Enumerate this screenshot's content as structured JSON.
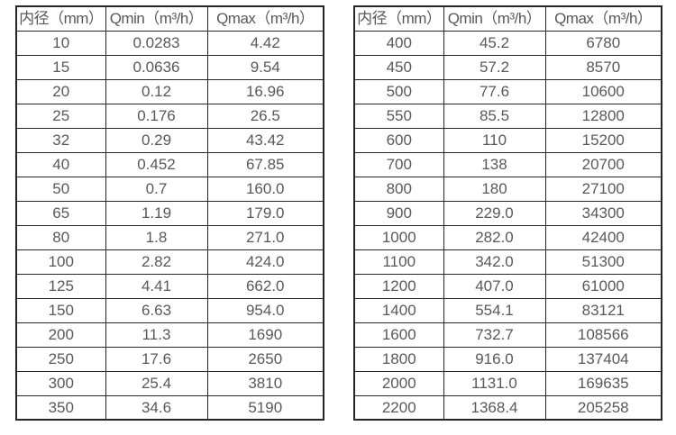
{
  "colors": {
    "background": "#ffffff",
    "border": "#262626",
    "text": "#595959"
  },
  "left_table": {
    "headers": {
      "diameter": "内径（mm）",
      "qmin": "Qmin（m³/h）",
      "qmax": "Qmax（m³/h）"
    },
    "rows": [
      [
        "10",
        "0.0283",
        "4.42"
      ],
      [
        "15",
        "0.0636",
        "9.54"
      ],
      [
        "20",
        "0.12",
        "16.96"
      ],
      [
        "25",
        "0.176",
        "26.5"
      ],
      [
        "32",
        "0.29",
        "43.42"
      ],
      [
        "40",
        "0.452",
        "67.85"
      ],
      [
        "50",
        "0.7",
        "160.0"
      ],
      [
        "65",
        "1.19",
        "179.0"
      ],
      [
        "80",
        "1.8",
        "271.0"
      ],
      [
        "100",
        "2.82",
        "424.0"
      ],
      [
        "125",
        "4.41",
        "662.0"
      ],
      [
        "150",
        "6.63",
        "954.0"
      ],
      [
        "200",
        "11.3",
        "1690"
      ],
      [
        "250",
        "17.6",
        "2650"
      ],
      [
        "300",
        "25.4",
        "3810"
      ],
      [
        "350",
        "34.6",
        "5190"
      ]
    ]
  },
  "right_table": {
    "headers": {
      "diameter": "内径（mm）",
      "qmin": "Qmin（m³/h）",
      "qmax": "Qmax（m³/h）"
    },
    "rows": [
      [
        "400",
        "45.2",
        "6780"
      ],
      [
        "450",
        "57.2",
        "8570"
      ],
      [
        "500",
        "77.6",
        "10600"
      ],
      [
        "550",
        "85.5",
        "12800"
      ],
      [
        "600",
        "110",
        "15200"
      ],
      [
        "700",
        "138",
        "20700"
      ],
      [
        "800",
        "180",
        "27100"
      ],
      [
        "900",
        "229.0",
        "34300"
      ],
      [
        "1000",
        "282.0",
        "42400"
      ],
      [
        "1100",
        "342.0",
        "51300"
      ],
      [
        "1200",
        "407.0",
        "61000"
      ],
      [
        "1400",
        "554.1",
        "83121"
      ],
      [
        "1600",
        "732.7",
        "108566"
      ],
      [
        "1800",
        "916.0",
        "137404"
      ],
      [
        "2000",
        "1131.0",
        "169635"
      ],
      [
        "2200",
        "1368.4",
        "205258"
      ]
    ]
  }
}
